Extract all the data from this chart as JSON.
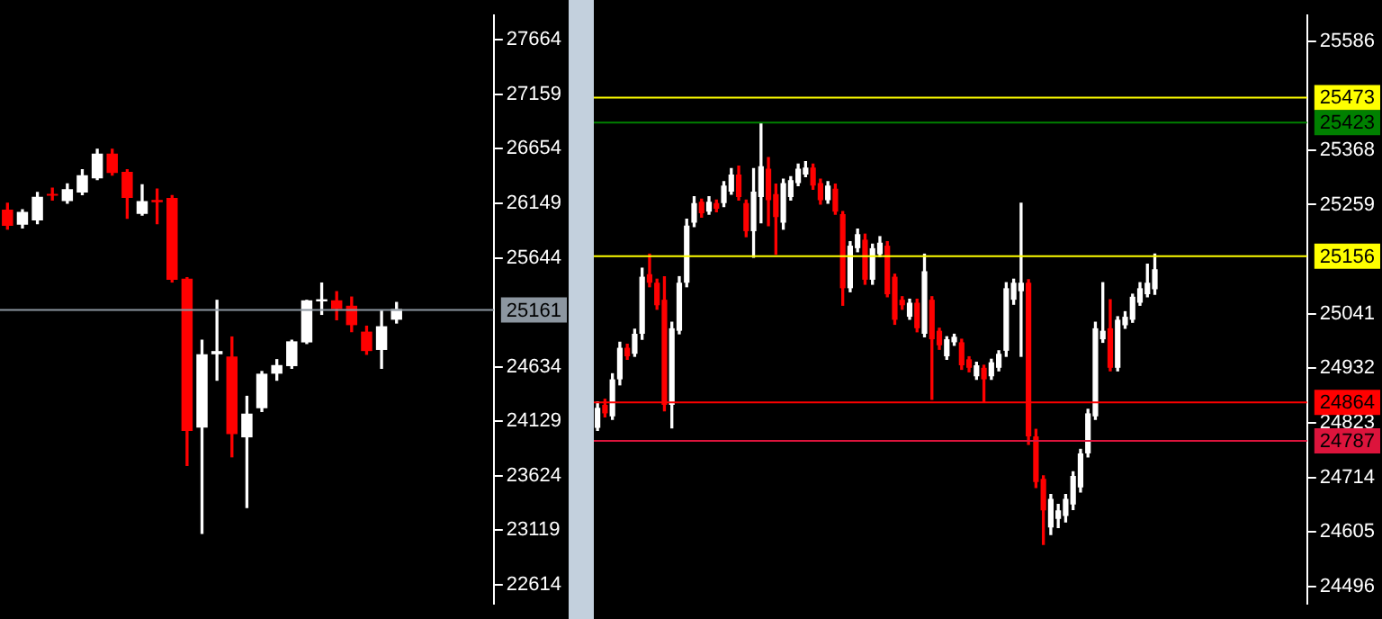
{
  "chart_data": [
    {
      "type": "candlestick",
      "categories": [
        null,
        null,
        null,
        null,
        null,
        null,
        null,
        null,
        null,
        null,
        null,
        null,
        null,
        null,
        null,
        null,
        null,
        null,
        null,
        null,
        null,
        null,
        null,
        null,
        null,
        null,
        null,
        null,
        null,
        null,
        null,
        null,
        null
      ],
      "ohlc": [
        [
          26090,
          26150,
          25910,
          25940
        ],
        [
          25950,
          26090,
          25920,
          26070
        ],
        [
          25990,
          26250,
          25960,
          26210
        ],
        [
          26230,
          26290,
          26180,
          26220
        ],
        [
          26170,
          26330,
          26150,
          26280
        ],
        [
          26250,
          26460,
          26230,
          26410
        ],
        [
          26380,
          26650,
          26370,
          26610
        ],
        [
          26610,
          26650,
          26410,
          26430
        ],
        [
          26440,
          26460,
          26010,
          26200
        ],
        [
          26050,
          26320,
          26040,
          26170
        ],
        [
          26180,
          26280,
          25960,
          26160
        ],
        [
          26200,
          26220,
          25420,
          25440
        ],
        [
          25450,
          25460,
          23720,
          24040
        ],
        [
          24070,
          24880,
          23090,
          24750
        ],
        [
          24750,
          25250,
          24510,
          24780
        ],
        [
          24730,
          24910,
          23800,
          24010
        ],
        [
          23980,
          24360,
          23330,
          24200
        ],
        [
          24250,
          24590,
          24220,
          24570
        ],
        [
          24570,
          24700,
          24510,
          24650
        ],
        [
          24640,
          24880,
          24620,
          24870
        ],
        [
          24860,
          25250,
          24850,
          25250
        ],
        [
          25240,
          25410,
          25120,
          25260
        ],
        [
          25250,
          25330,
          25070,
          25170
        ],
        [
          25200,
          25280,
          24960,
          25020
        ],
        [
          24960,
          25010,
          24750,
          24780
        ],
        [
          24790,
          25150,
          24620,
          25010
        ],
        [
          25070,
          25230,
          25040,
          25170
        ],
        null,
        null,
        null,
        null,
        null,
        null
      ],
      "colors": [
        "#ff0000",
        "#ffffff",
        "#ffffff",
        "#ff0000",
        "#ffffff",
        "#ffffff",
        "#ffffff",
        "#ff0000",
        "#ff0000",
        "#ffffff",
        "#ff0000",
        "#ff0000",
        "#ff0000",
        "#ffffff",
        "#ffffff",
        "#ff0000",
        "#ffffff",
        "#ffffff",
        "#ffffff",
        "#ffffff",
        "#ffffff",
        "#ffffff",
        "#ff0000",
        "#ff0000",
        "#ff0000",
        "#ffffff",
        "#ffffff",
        null,
        null,
        null,
        null,
        null,
        null
      ],
      "ylim": [
        22440,
        27890
      ],
      "yticks": [
        22614,
        23119,
        23624,
        24129,
        24634,
        25644,
        26149,
        26654,
        27159,
        27664
      ],
      "ref_lines": [
        {
          "axis": "y",
          "value": 25161,
          "label": "25161",
          "color": "#8c96a0"
        }
      ],
      "grid": false,
      "tick_labels": "y"
    },
    {
      "type": "candlestick",
      "categories": [
        null,
        null,
        null,
        null,
        null,
        null,
        null,
        null,
        null,
        null,
        null,
        null,
        null,
        null,
        null,
        null,
        null,
        null,
        null,
        null,
        null,
        null,
        null,
        null,
        null,
        null,
        null,
        null,
        null,
        null,
        null,
        null,
        null,
        null,
        null,
        null,
        null,
        null,
        null,
        null,
        null,
        null,
        null,
        null,
        null,
        null,
        null,
        null,
        null,
        null,
        null,
        null,
        null,
        null,
        null,
        null,
        null,
        null,
        null,
        null,
        null,
        null,
        null,
        null,
        null,
        null,
        null,
        null,
        null,
        null,
        null,
        null,
        null,
        null,
        null,
        null,
        null,
        null,
        null,
        null,
        null,
        null,
        null,
        null,
        null,
        null,
        null,
        null,
        null,
        null,
        null,
        null,
        null,
        null,
        null,
        null
      ],
      "ohlc": [
        [
          24813,
          24865,
          24808,
          24853
        ],
        [
          24859,
          24870,
          24835,
          24842
        ],
        [
          24836,
          24921,
          24830,
          24910
        ],
        [
          24910,
          24984,
          24899,
          24973
        ],
        [
          24973,
          24980,
          24950,
          24956
        ],
        [
          24961,
          25010,
          24956,
          25001
        ],
        [
          25001,
          25132,
          24990,
          25115
        ],
        [
          25120,
          25160,
          25095,
          25103
        ],
        [
          25103,
          25110,
          25050,
          25058
        ],
        [
          25069,
          25115,
          24847,
          24859
        ],
        [
          24859,
          25024,
          24813,
          25012
        ],
        [
          25007,
          25115,
          25001,
          25103
        ],
        [
          25103,
          25230,
          25095,
          25217
        ],
        [
          25223,
          25275,
          25215,
          25262
        ],
        [
          25265,
          25270,
          25234,
          25242
        ],
        [
          25245,
          25275,
          25240,
          25265
        ],
        [
          25262,
          25268,
          25245,
          25251
        ],
        [
          25262,
          25305,
          25255,
          25297
        ],
        [
          25285,
          25331,
          25280,
          25319
        ],
        [
          25319,
          25336,
          25268,
          25274
        ],
        [
          25262,
          25268,
          25195,
          25206
        ],
        [
          25206,
          25331,
          25154,
          25285
        ],
        [
          25274,
          25422,
          25223,
          25336
        ],
        [
          25331,
          25353,
          25217,
          25268
        ],
        [
          25280,
          25300,
          25160,
          25234
        ],
        [
          25223,
          25310,
          25210,
          25302
        ],
        [
          25274,
          25315,
          25268,
          25308
        ],
        [
          25302,
          25340,
          25297,
          25331
        ],
        [
          25319,
          25345,
          25315,
          25333
        ],
        [
          25333,
          25340,
          25290,
          25297
        ],
        [
          25302,
          25310,
          25260,
          25268
        ],
        [
          25268,
          25305,
          25262,
          25297
        ],
        [
          25291,
          25300,
          25240,
          25245
        ],
        [
          25240,
          25245,
          25058,
          25092
        ],
        [
          25092,
          25185,
          25085,
          25177
        ],
        [
          25172,
          25210,
          25165,
          25200
        ],
        [
          25189,
          25200,
          25100,
          25109
        ],
        [
          25109,
          25180,
          25100,
          25172
        ],
        [
          25160,
          25195,
          25155,
          25183
        ],
        [
          25177,
          25185,
          25075,
          25080
        ],
        [
          25115,
          25120,
          25020,
          25029
        ],
        [
          25069,
          25075,
          25050,
          25058
        ],
        [
          25035,
          25070,
          25030,
          25063
        ],
        [
          25063,
          25070,
          25005,
          25012
        ],
        [
          25001,
          25160,
          24995,
          25126
        ],
        [
          25069,
          25075,
          24870,
          24990
        ],
        [
          25007,
          25012,
          24970,
          24978
        ],
        [
          24956,
          24995,
          24950,
          24990
        ],
        [
          24984,
          25000,
          24978,
          24995
        ],
        [
          24984,
          24990,
          24930,
          24938
        ],
        [
          24950,
          24955,
          24925,
          24933
        ],
        [
          24916,
          24944,
          24910,
          24938
        ],
        [
          24933,
          24938,
          24865,
          24910
        ],
        [
          24916,
          24950,
          24910,
          24944
        ],
        [
          24933,
          24967,
          24927,
          24961
        ],
        [
          24967,
          25103,
          24956,
          25092
        ],
        [
          25069,
          25110,
          25060,
          25103
        ],
        [
          25086,
          25262,
          24956,
          25103
        ],
        [
          25103,
          25109,
          24780,
          24796
        ],
        [
          24796,
          24810,
          24694,
          24705
        ],
        [
          24711,
          24717,
          24580,
          24648
        ],
        [
          24614,
          24680,
          24600,
          24671
        ],
        [
          24631,
          24660,
          24614,
          24648
        ],
        [
          24637,
          24680,
          24625,
          24671
        ],
        [
          24660,
          24725,
          24650,
          24717
        ],
        [
          24694,
          24770,
          24685,
          24762
        ],
        [
          24762,
          24850,
          24755,
          24842
        ],
        [
          24836,
          25024,
          24830,
          25012
        ],
        [
          24990,
          25103,
          24984,
          25007
        ],
        [
          25012,
          25069,
          24927,
          24933
        ],
        [
          24933,
          25035,
          24927,
          25029
        ],
        [
          25018,
          25045,
          25012,
          25035
        ],
        [
          25029,
          25080,
          25024,
          25075
        ],
        [
          25063,
          25103,
          25058,
          25092
        ],
        [
          25080,
          25140,
          25075,
          25103
        ],
        [
          25090,
          25160,
          25080,
          25130
        ],
        null,
        null,
        null,
        null,
        null,
        null,
        null,
        null,
        null,
        null,
        null,
        null,
        null,
        null,
        null,
        null,
        null,
        null,
        null,
        null
      ],
      "colors": [
        "#ffffff",
        "#ff0000",
        "#ffffff",
        "#ffffff",
        "#ff0000",
        "#ffffff",
        "#ffffff",
        "#ff0000",
        "#ff0000",
        "#ff0000",
        "#ffffff",
        "#ffffff",
        "#ffffff",
        "#ffffff",
        "#ff0000",
        "#ffffff",
        "#ff0000",
        "#ffffff",
        "#ffffff",
        "#ff0000",
        "#ff0000",
        "#ffffff",
        "#ffffff",
        "#ff0000",
        "#ff0000",
        "#ffffff",
        "#ffffff",
        "#ffffff",
        "#ffffff",
        "#ff0000",
        "#ff0000",
        "#ffffff",
        "#ff0000",
        "#ff0000",
        "#ffffff",
        "#ffffff",
        "#ff0000",
        "#ffffff",
        "#ffffff",
        "#ff0000",
        "#ff0000",
        "#ff0000",
        "#ffffff",
        "#ff0000",
        "#ffffff",
        "#ff0000",
        "#ff0000",
        "#ffffff",
        "#ffffff",
        "#ff0000",
        "#ff0000",
        "#ffffff",
        "#ff0000",
        "#ffffff",
        "#ffffff",
        "#ffffff",
        "#ffffff",
        "#ffffff",
        "#ff0000",
        "#ff0000",
        "#ff0000",
        "#ffffff",
        "#ffffff",
        "#ffffff",
        "#ffffff",
        "#ffffff",
        "#ffffff",
        "#ffffff",
        "#ffffff",
        "#ff0000",
        "#ffffff",
        "#ffffff",
        "#ffffff",
        "#ffffff",
        "#ffffff",
        "#ffffff",
        null,
        null,
        null,
        null,
        null,
        null,
        null,
        null,
        null,
        null,
        null,
        null,
        null,
        null,
        null,
        null,
        null,
        null,
        null,
        null
      ],
      "ylim": [
        24462,
        25637
      ],
      "yticks": [
        24496,
        24605,
        24714,
        24823,
        24932,
        25041,
        25259,
        25368,
        25586
      ],
      "ref_lines": [
        {
          "axis": "y",
          "value": 25473,
          "label": "25473",
          "color": "#ffff00"
        },
        {
          "axis": "y",
          "value": 25423,
          "label": "25423",
          "color": "#008000"
        },
        {
          "axis": "y",
          "value": 25156,
          "label": "25156",
          "color": "#ffff00"
        },
        {
          "axis": "y",
          "value": 24864,
          "label": "24864",
          "color": "#ff0000"
        },
        {
          "axis": "y",
          "value": 24787,
          "label": "24787",
          "color": "#dc143c"
        }
      ],
      "grid": false,
      "tick_labels": "y"
    }
  ]
}
